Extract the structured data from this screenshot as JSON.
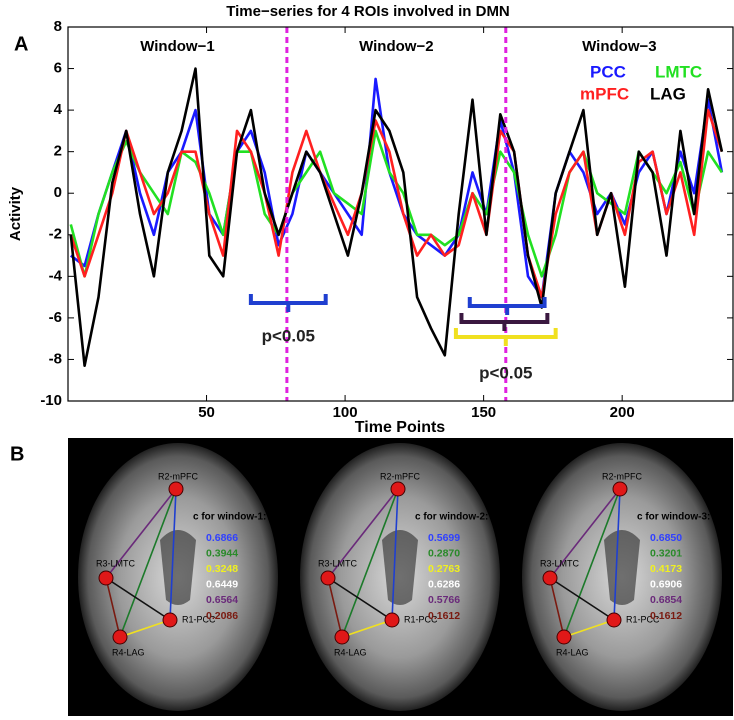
{
  "chart_data": {
    "type": "line",
    "title": "Time−series for 4 ROIs involved in DMN",
    "xlabel": "Time Points",
    "ylabel": "Activity",
    "x": [
      1,
      6,
      11,
      16,
      21,
      26,
      31,
      36,
      41,
      46,
      51,
      56,
      61,
      66,
      71,
      76,
      81,
      86,
      91,
      96,
      101,
      106,
      111,
      116,
      121,
      126,
      131,
      136,
      141,
      146,
      151,
      156,
      161,
      166,
      171,
      176,
      181,
      186,
      191,
      196,
      201,
      206,
      211,
      216,
      221,
      226,
      231,
      236
    ],
    "series": [
      {
        "name": "PCC",
        "color": "#1a1aff",
        "values": [
          -3,
          -3.5,
          -1,
          1,
          3,
          0,
          -2,
          1,
          2,
          4,
          -1,
          -2,
          2,
          3,
          1,
          -2.5,
          -1,
          2,
          1,
          0,
          -1,
          -2,
          5.5,
          1,
          -1,
          -2,
          -2.5,
          -3,
          -2,
          1,
          -1,
          3.5,
          1,
          -4,
          -5,
          0,
          2,
          1,
          -1,
          0,
          -1.5,
          1,
          2,
          -1,
          2,
          0,
          4.5,
          1
        ]
      },
      {
        "name": "LMTC",
        "color": "#22e022",
        "values": [
          -1.5,
          -4,
          -1,
          1,
          2.5,
          1,
          0,
          -1,
          2,
          1.5,
          0,
          -2,
          2,
          2,
          -1,
          -2,
          0,
          1,
          2,
          0,
          -0.5,
          -1,
          3,
          1,
          0,
          -2,
          -2,
          -2.5,
          -2,
          0,
          -1,
          2,
          1,
          -2,
          -4,
          -2,
          1,
          2,
          0,
          -0.5,
          -1,
          2,
          1,
          0,
          1.5,
          -1,
          2,
          1
        ]
      },
      {
        "name": "mPFC",
        "color": "#ff2020",
        "values": [
          -2,
          -4,
          -2,
          0,
          3,
          1,
          -1,
          0,
          2,
          2,
          -1,
          -3,
          3,
          2,
          0,
          -3,
          1,
          3,
          1,
          -0.5,
          -2,
          0,
          3.5,
          2,
          -1,
          -3,
          -2,
          -3,
          -2.5,
          0,
          -2,
          3,
          2,
          -3,
          -5,
          -1,
          1,
          2,
          -2,
          0,
          -2,
          1.5,
          2,
          -1,
          1,
          -2,
          4,
          2
        ]
      },
      {
        "name": "LAG",
        "color": "#000000",
        "values": [
          -2,
          -8.3,
          -5,
          0.5,
          3,
          -1,
          -4,
          1,
          3,
          6,
          -3,
          -4,
          2,
          4,
          0,
          -2,
          0,
          2,
          1,
          -1,
          -3,
          0,
          4,
          3,
          1,
          -5,
          -6.5,
          -7.8,
          -1,
          4.5,
          -2,
          3.8,
          2,
          -3,
          -5.5,
          0,
          2,
          4,
          -2,
          0,
          -4.5,
          2,
          1,
          -3,
          3,
          -1,
          5,
          2
        ]
      }
    ],
    "xlim": [
      0,
      240
    ],
    "xticks": [
      50,
      100,
      150,
      200
    ],
    "ylim": [
      -10,
      8
    ],
    "yticks": [
      -10,
      -8,
      -6,
      -4,
      -2,
      0,
      2,
      4,
      6,
      8
    ],
    "legend": "upper right",
    "windows": [
      "Window−1",
      "Window−2",
      "Window−3"
    ],
    "vlines": [
      79,
      158
    ],
    "vline_color": "#e020e0",
    "annotations": [
      {
        "text": "p<0.05",
        "brackets": [
          {
            "x": [
              66,
              93
            ],
            "color": "#1f3fd0"
          }
        ]
      },
      {
        "text": "p<0.05",
        "brackets": [
          {
            "x": [
              145,
              172
            ],
            "color": "#1f3fd0"
          },
          {
            "x": [
              142,
              173
            ],
            "color": "#3a1840"
          },
          {
            "x": [
              140,
              176
            ],
            "color": "#f0e020"
          }
        ]
      }
    ]
  },
  "panel_labels": [
    "A",
    "B"
  ],
  "brain_panels": [
    {
      "nodes": [
        "R1-PCC",
        "R2-mPFC",
        "R3-LMTC",
        "R4-LAG"
      ],
      "heading": "c for window-1:",
      "values": [
        "0.6866",
        "0.3944",
        "0.3248",
        "0.6449",
        "0.6564",
        "0.2086"
      ]
    },
    {
      "nodes": [
        "R1-PCC",
        "R2-mPFC",
        "R3-LMTC",
        "R4-LAG"
      ],
      "heading": "c for window-2:",
      "values": [
        "0.5699",
        "0.2870",
        "0.2763",
        "0.6286",
        "0.5766",
        "0.1612"
      ]
    },
    {
      "nodes": [
        "R1-PCC",
        "R2-mPFC",
        "R3-LMTC",
        "R4-LAG"
      ],
      "heading": "c for window-3:",
      "values": [
        "0.6850",
        "0.3201",
        "0.4173",
        "0.6906",
        "0.6854",
        "0.1612"
      ]
    }
  ]
}
